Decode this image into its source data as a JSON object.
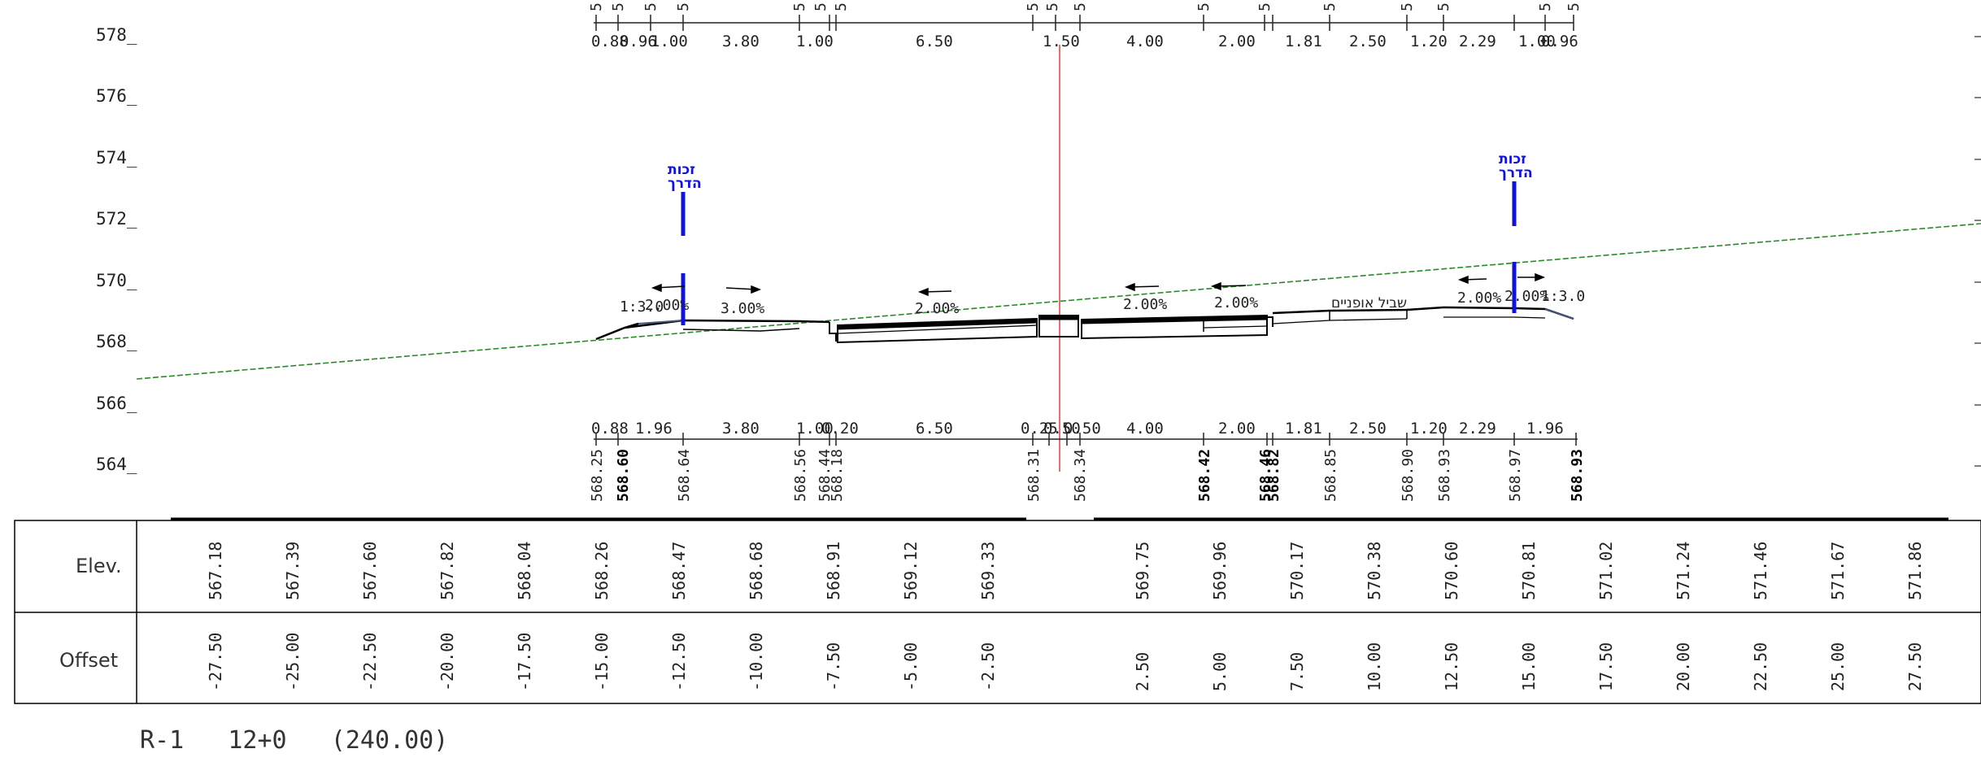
{
  "elevation_axis": [
    "578_",
    "576_",
    "574_",
    "572_",
    "570_",
    "568_",
    "566_",
    "564_"
  ],
  "top_fives": [
    "5",
    "5",
    "5",
    "5",
    "5",
    "5",
    "5",
    "5",
    "5",
    "5",
    "5",
    "5",
    "5",
    "5",
    "5",
    "5",
    "5"
  ],
  "top_dims": [
    "0.88",
    "0.96",
    "1.00",
    "3.80",
    "1.00",
    "6.50",
    "1.50",
    "4.00",
    "2.00",
    "1.81",
    "2.50",
    "1.20",
    "2.29",
    "1.00",
    "0.96"
  ],
  "bottom_dims": [
    "0.88",
    "1.96",
    "3.80",
    "1.00",
    "0.20",
    "6.50",
    "0.25",
    "0.50",
    "0.50",
    "4.00",
    "2.00",
    "1.81",
    "2.50",
    "1.20",
    "2.29",
    "1.96"
  ],
  "point_elevations": [
    "568.25",
    "568.60",
    "568.64",
    "568.56",
    "568.44",
    "568.18",
    "568.31",
    "568.34",
    "568.42",
    "568.46",
    "568.82",
    "568.85",
    "568.90",
    "568.93",
    "568.97",
    "568.93"
  ],
  "slope_labels": [
    "1:3.0",
    "2.00%",
    "3.00%",
    "2.00%",
    "2.00%",
    "2.00%",
    "2.00%",
    "2.00%",
    "1:3.0"
  ],
  "hebrew_labels": {
    "right_of_way_left_1": "זכות",
    "right_of_way_left_2": "הדרך",
    "right_of_way_right_1": "זכות",
    "right_of_way_right_2": "הדרך",
    "bike_path": "שביל אופניים"
  },
  "table": {
    "elev_label": "Elev.",
    "offset_label": "Offset",
    "elev_values": [
      "567.18",
      "567.39",
      "567.60",
      "567.82",
      "568.04",
      "568.26",
      "568.47",
      "568.68",
      "568.91",
      "569.12",
      "569.33",
      "569.75",
      "569.96",
      "570.17",
      "570.38",
      "570.60",
      "570.81",
      "571.02",
      "571.24",
      "571.46",
      "571.67",
      "571.86"
    ],
    "offset_values": [
      "-27.50",
      "-25.00",
      "-22.50",
      "-20.00",
      "-17.50",
      "-15.00",
      "-12.50",
      "-10.00",
      "-7.50",
      "-5.00",
      "-2.50",
      "2.50",
      "5.00",
      "7.50",
      "10.00",
      "12.50",
      "15.00",
      "17.50",
      "20.00",
      "22.50",
      "25.00",
      "27.50"
    ]
  },
  "section_title": "R-1   12+0   (240.00)",
  "colors": {
    "ground_line": "#2a8a2a",
    "centerline": "#e02020",
    "right_of_way_marker": "#1010e0",
    "structure": "#000000"
  }
}
